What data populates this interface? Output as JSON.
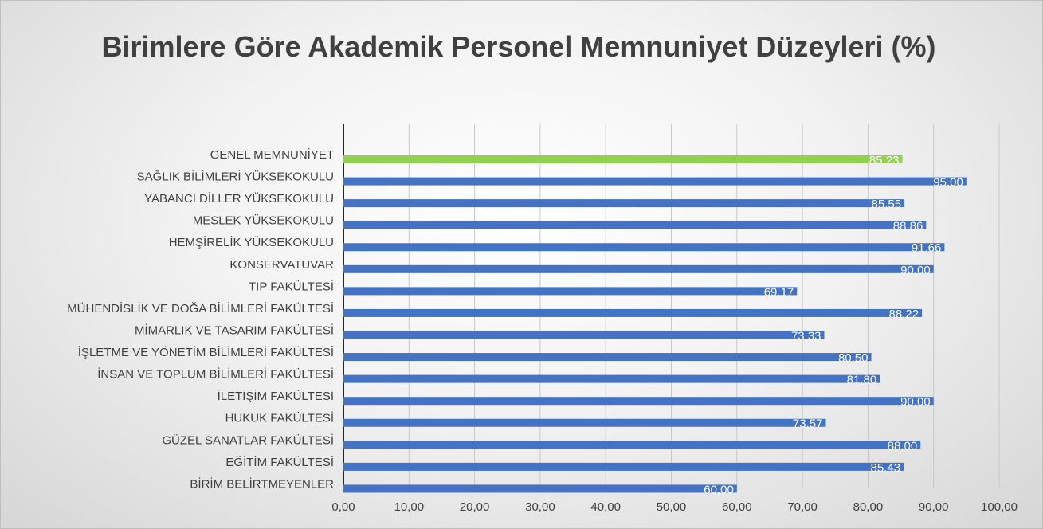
{
  "chart_data": {
    "type": "barh",
    "title": "Birimlere Göre Akademik Personel Memnuniyet Düzeyleri (%)",
    "categories": [
      "GENEL MEMNUNİYET",
      "SAĞLIK BİLİMLERİ YÜKSEKOKULU",
      "YABANCI DİLLER YÜKSEKOKULU",
      "MESLEK YÜKSEKOKULU",
      "HEMŞİRELİK YÜKSEKOKULU",
      "KONSERVATUVAR",
      "TIP FAKÜLTESİ",
      "MÜHENDİSLİK VE DOĞA BİLİMLERİ FAKÜLTESİ",
      "MİMARLIK VE TASARIM FAKÜLTESİ",
      "İŞLETME VE YÖNETİM BİLİMLERİ FAKÜLTESİ",
      "İNSAN VE TOPLUM BİLİMLERİ FAKÜLTESİ",
      "İLETİŞİM FAKÜLTESİ",
      "HUKUK FAKÜLTESİ",
      "GÜZEL SANATLAR FAKÜLTESİ",
      "EĞİTİM FAKÜLTESİ",
      "BİRİM BELİRTMEYENLER"
    ],
    "values": [
      85.23,
      95.0,
      85.55,
      88.86,
      91.66,
      90.0,
      69.17,
      88.22,
      73.33,
      80.5,
      81.8,
      90.0,
      73.57,
      88.0,
      85.43,
      60.0
    ],
    "value_labels": [
      "85,23",
      "95,00",
      "85,55",
      "88,86",
      "91,66",
      "90,00",
      "69,17",
      "88,22",
      "73,33",
      "80,50",
      "81,80",
      "90,00",
      "73,57",
      "88,00",
      "85,43",
      "60,00"
    ],
    "colors": [
      "#92d050",
      "#4472c4",
      "#4472c4",
      "#4472c4",
      "#4472c4",
      "#4472c4",
      "#4472c4",
      "#4472c4",
      "#4472c4",
      "#4472c4",
      "#4472c4",
      "#4472c4",
      "#4472c4",
      "#4472c4",
      "#4472c4",
      "#4472c4"
    ],
    "xlim": [
      0,
      100
    ],
    "xticks": [
      {
        "value": 0,
        "label": "0,00"
      },
      {
        "value": 10,
        "label": "10,00"
      },
      {
        "value": 20,
        "label": "20,00"
      },
      {
        "value": 30,
        "label": "30,00"
      },
      {
        "value": 40,
        "label": "40,00"
      },
      {
        "value": 50,
        "label": "50,00"
      },
      {
        "value": 60,
        "label": "60,00"
      },
      {
        "value": 70,
        "label": "70,00"
      },
      {
        "value": 80,
        "label": "80,00"
      },
      {
        "value": 90,
        "label": "90,00"
      },
      {
        "value": 100,
        "label": "100,00"
      }
    ],
    "grid": true
  }
}
